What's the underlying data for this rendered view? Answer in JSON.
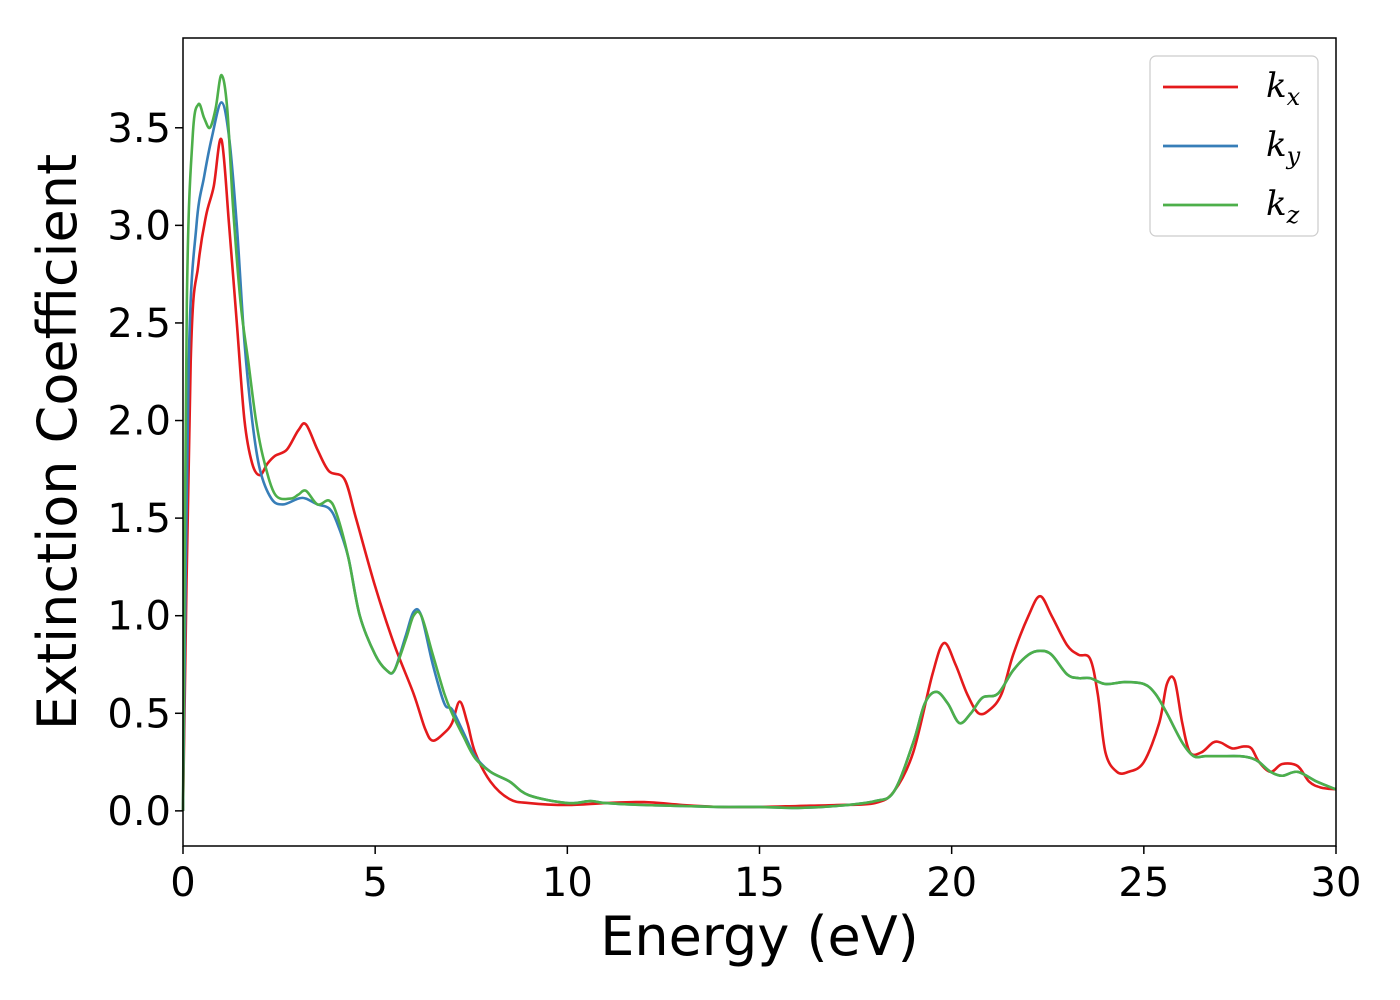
{
  "chart_data": {
    "type": "line",
    "xlabel": "Energy (eV)",
    "ylabel": "Extinction Coefficient",
    "xlim": [
      0,
      30
    ],
    "ylim": [
      -0.18,
      3.96
    ],
    "xticks": [
      "0",
      "5",
      "10",
      "15",
      "20",
      "25",
      "30"
    ],
    "yticks": [
      "0.0",
      "0.5",
      "1.0",
      "1.5",
      "2.0",
      "2.5",
      "3.0",
      "3.5"
    ],
    "grid": false,
    "legend_position": "top-right",
    "series": [
      {
        "name": "k",
        "subscript": "x",
        "color": "#e41a1c",
        "x": [
          0,
          0.2,
          0.4,
          0.6,
          0.8,
          1.0,
          1.2,
          1.4,
          1.6,
          1.8,
          2.0,
          2.2,
          2.4,
          2.7,
          3.0,
          3.2,
          3.5,
          3.8,
          4.2,
          4.5,
          5.0,
          5.5,
          6.0,
          6.3,
          6.5,
          6.8,
          7.0,
          7.2,
          7.4,
          7.6,
          8.0,
          8.5,
          9.0,
          10.0,
          11.0,
          12.0,
          13.0,
          14.0,
          15.0,
          16.0,
          17.0,
          18.0,
          18.5,
          19.0,
          19.5,
          19.8,
          20.1,
          20.4,
          20.7,
          21.0,
          21.3,
          21.6,
          22.0,
          22.3,
          22.6,
          23.0,
          23.3,
          23.6,
          23.8,
          24.0,
          24.3,
          24.6,
          25.0,
          25.4,
          25.6,
          25.8,
          26.0,
          26.2,
          26.5,
          26.8,
          27.0,
          27.3,
          27.6,
          27.8,
          28.0,
          28.3,
          28.6,
          29.0,
          29.3,
          29.6,
          30.0
        ],
        "y": [
          0.0,
          2.3,
          2.8,
          3.05,
          3.2,
          3.44,
          3.0,
          2.5,
          2.0,
          1.78,
          1.72,
          1.78,
          1.82,
          1.85,
          1.95,
          1.98,
          1.85,
          1.74,
          1.7,
          1.5,
          1.15,
          0.85,
          0.6,
          0.42,
          0.36,
          0.4,
          0.45,
          0.56,
          0.45,
          0.3,
          0.15,
          0.06,
          0.04,
          0.03,
          0.04,
          0.045,
          0.03,
          0.02,
          0.02,
          0.025,
          0.03,
          0.04,
          0.1,
          0.3,
          0.7,
          0.86,
          0.75,
          0.6,
          0.5,
          0.52,
          0.6,
          0.8,
          1.0,
          1.1,
          1.0,
          0.85,
          0.8,
          0.78,
          0.6,
          0.3,
          0.2,
          0.2,
          0.25,
          0.45,
          0.65,
          0.67,
          0.45,
          0.3,
          0.3,
          0.35,
          0.35,
          0.32,
          0.33,
          0.32,
          0.25,
          0.2,
          0.24,
          0.23,
          0.15,
          0.12,
          0.11
        ]
      },
      {
        "name": "k",
        "subscript": "y",
        "color": "#377eb8",
        "x": [
          0,
          0.15,
          0.35,
          0.55,
          0.75,
          1.0,
          1.2,
          1.4,
          1.6,
          1.8,
          2.0,
          2.3,
          2.6,
          3.0,
          3.2,
          3.5,
          3.8,
          4.0,
          4.3,
          4.6,
          5.0,
          5.3,
          5.5,
          5.8,
          6.0,
          6.2,
          6.5,
          6.8,
          7.0,
          7.3,
          7.6,
          8.0,
          8.5,
          9.0,
          10.0,
          10.6,
          11.0,
          12.0,
          13.0,
          14.0,
          15.0,
          16.0,
          17.0,
          18.0,
          18.5,
          19.0,
          19.3,
          19.6,
          19.9,
          20.2,
          20.5,
          20.8,
          21.2,
          21.6,
          22.0,
          22.3,
          22.6,
          23.0,
          23.3,
          23.6,
          24.0,
          24.5,
          25.0,
          25.3,
          25.6,
          26.0,
          26.3,
          26.6,
          27.0,
          27.5,
          27.8,
          28.0,
          28.3,
          28.6,
          29.0,
          29.5,
          30.0
        ],
        "y": [
          0.0,
          2.3,
          3.0,
          3.25,
          3.45,
          3.63,
          3.45,
          3.0,
          2.4,
          2.0,
          1.75,
          1.6,
          1.57,
          1.6,
          1.6,
          1.57,
          1.55,
          1.48,
          1.3,
          1.0,
          0.8,
          0.72,
          0.72,
          0.9,
          1.02,
          1.0,
          0.75,
          0.55,
          0.52,
          0.4,
          0.28,
          0.2,
          0.15,
          0.08,
          0.04,
          0.05,
          0.04,
          0.03,
          0.025,
          0.02,
          0.02,
          0.015,
          0.025,
          0.05,
          0.1,
          0.35,
          0.55,
          0.61,
          0.55,
          0.45,
          0.5,
          0.58,
          0.6,
          0.72,
          0.8,
          0.82,
          0.8,
          0.7,
          0.68,
          0.68,
          0.65,
          0.66,
          0.65,
          0.6,
          0.5,
          0.35,
          0.28,
          0.28,
          0.28,
          0.28,
          0.27,
          0.25,
          0.2,
          0.18,
          0.2,
          0.15,
          0.11
        ]
      },
      {
        "name": "k",
        "subscript": "z",
        "color": "#4daf4a",
        "x": [
          0,
          0.1,
          0.25,
          0.4,
          0.55,
          0.7,
          0.85,
          1.0,
          1.15,
          1.3,
          1.5,
          1.7,
          1.9,
          2.1,
          2.4,
          2.8,
          3.0,
          3.2,
          3.5,
          3.8,
          4.0,
          4.3,
          4.6,
          5.0,
          5.3,
          5.5,
          5.8,
          6.0,
          6.2,
          6.5,
          6.8,
          7.0,
          7.3,
          7.6,
          8.0,
          8.5,
          9.0,
          10.0,
          10.6,
          11.0,
          12.0,
          13.0,
          14.0,
          15.0,
          16.0,
          17.0,
          18.0,
          18.5,
          19.0,
          19.3,
          19.6,
          19.9,
          20.2,
          20.5,
          20.8,
          21.2,
          21.6,
          22.0,
          22.3,
          22.6,
          23.0,
          23.3,
          23.6,
          24.0,
          24.5,
          25.0,
          25.3,
          25.6,
          26.0,
          26.3,
          26.6,
          27.0,
          27.5,
          27.8,
          28.0,
          28.3,
          28.6,
          29.0,
          29.5,
          30.0
        ],
        "y": [
          0.0,
          2.6,
          3.45,
          3.62,
          3.55,
          3.5,
          3.6,
          3.77,
          3.6,
          3.1,
          2.6,
          2.3,
          2.0,
          1.8,
          1.62,
          1.6,
          1.62,
          1.64,
          1.57,
          1.59,
          1.52,
          1.3,
          1.0,
          0.8,
          0.72,
          0.72,
          0.88,
          1.0,
          1.0,
          0.8,
          0.6,
          0.5,
          0.38,
          0.27,
          0.2,
          0.15,
          0.08,
          0.04,
          0.05,
          0.04,
          0.03,
          0.025,
          0.02,
          0.02,
          0.015,
          0.025,
          0.05,
          0.1,
          0.35,
          0.55,
          0.61,
          0.55,
          0.45,
          0.5,
          0.58,
          0.6,
          0.72,
          0.8,
          0.82,
          0.8,
          0.7,
          0.68,
          0.68,
          0.65,
          0.66,
          0.65,
          0.6,
          0.5,
          0.35,
          0.28,
          0.28,
          0.28,
          0.28,
          0.27,
          0.25,
          0.2,
          0.18,
          0.2,
          0.15,
          0.11
        ]
      }
    ]
  }
}
